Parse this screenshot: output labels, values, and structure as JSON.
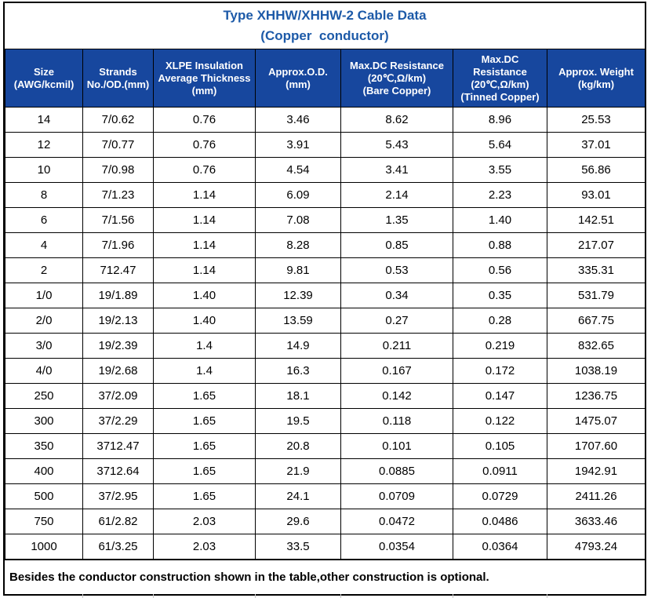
{
  "title": {
    "line1": "Type XHHW/XHHW-2 Cable Data",
    "line2": "(Copper  conductor)"
  },
  "colors": {
    "header_bg": "#17479E",
    "title_text": "#1D5AA8",
    "border": "#000000",
    "body_text": "#000000"
  },
  "table": {
    "columns": [
      "Size\n(AWG/kcmil)",
      "Strands\nNo./OD.(mm)",
      "XLPE Insulation\nAverage Thickness\n(mm)",
      "Approx.O.D.\n(mm)",
      "Max.DC Resistance\n(20℃,Ω/km)\n(Bare Copper)",
      "Max.DC\nResistance\n(20℃,Ω/km)\n(Tinned Copper)",
      "Approx. Weight\n(kg/km)"
    ],
    "rows": [
      [
        "14",
        "7/0.62",
        "0.76",
        "3.46",
        "8.62",
        "8.96",
        "25.53"
      ],
      [
        "12",
        "7/0.77",
        "0.76",
        "3.91",
        "5.43",
        "5.64",
        "37.01"
      ],
      [
        "10",
        "7/0.98",
        "0.76",
        "4.54",
        "3.41",
        "3.55",
        "56.86"
      ],
      [
        "8",
        "7/1.23",
        "1.14",
        "6.09",
        "2.14",
        "2.23",
        "93.01"
      ],
      [
        "6",
        "7/1.56",
        "1.14",
        "7.08",
        "1.35",
        "1.40",
        "142.51"
      ],
      [
        "4",
        "7/1.96",
        "1.14",
        "8.28",
        "0.85",
        "0.88",
        "217.07"
      ],
      [
        "2",
        "712.47",
        "1.14",
        "9.81",
        "0.53",
        "0.56",
        "335.31"
      ],
      [
        "1/0",
        "19/1.89",
        "1.40",
        "12.39",
        "0.34",
        "0.35",
        "531.79"
      ],
      [
        "2/0",
        "19/2.13",
        "1.40",
        "13.59",
        "0.27",
        "0.28",
        "667.75"
      ],
      [
        "3/0",
        "19/2.39",
        "1.4",
        "14.9",
        "0.211",
        "0.219",
        "832.65"
      ],
      [
        "4/0",
        "19/2.68",
        "1.4",
        "16.3",
        "0.167",
        "0.172",
        "1038.19"
      ],
      [
        "250",
        "37/2.09",
        "1.65",
        "18.1",
        "0.142",
        "0.147",
        "1236.75"
      ],
      [
        "300",
        "37/2.29",
        "1.65",
        "19.5",
        "0.118",
        "0.122",
        "1475.07"
      ],
      [
        "350",
        "3712.47",
        "1.65",
        "20.8",
        "0.101",
        "0.105",
        "1707.60"
      ],
      [
        "400",
        "3712.64",
        "1.65",
        "21.9",
        "0.0885",
        "0.0911",
        "1942.91"
      ],
      [
        "500",
        "37/2.95",
        "1.65",
        "24.1",
        "0.0709",
        "0.0729",
        "2411.26"
      ],
      [
        "750",
        "61/2.82",
        "2.03",
        "29.6",
        "0.0472",
        "0.0486",
        "3633.46"
      ],
      [
        "1000",
        "61/3.25",
        "2.03",
        "33.5",
        "0.0354",
        "0.0364",
        "4793.24"
      ]
    ]
  },
  "footnote": "Besides the conductor construction shown in the table,other construction is optional."
}
